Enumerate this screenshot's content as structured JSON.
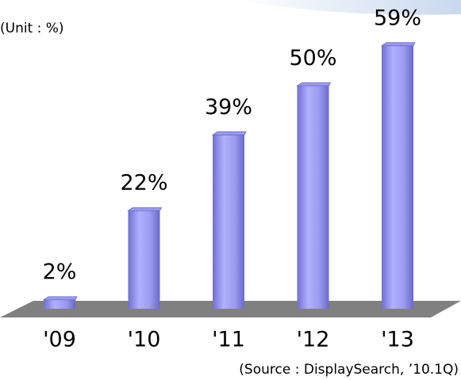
{
  "chart_data": {
    "type": "bar",
    "unit_note": "(Unit : %)",
    "source": "(Source : DisplaySearch, ’10.1Q)",
    "categories": [
      "'09",
      "'10",
      "'11",
      "'12",
      "'13"
    ],
    "values": [
      2,
      22,
      39,
      50,
      59
    ],
    "value_labels": [
      "2%",
      "22%",
      "39%",
      "50%",
      "59%"
    ],
    "color": "#9a9af0"
  }
}
